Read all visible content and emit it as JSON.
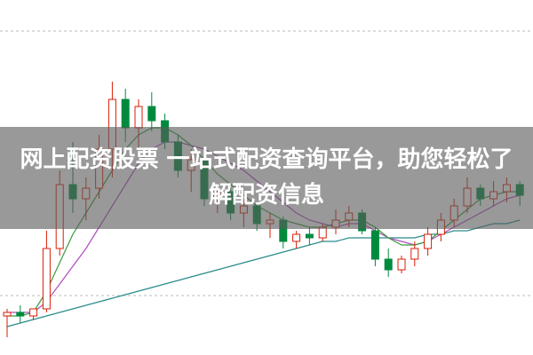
{
  "chart_data": {
    "type": "candlestick",
    "title": "网上配资股票 一站式配资查询平台，助您轻松了解配资信息",
    "ylim": [
      0,
      100
    ],
    "up_color": "#d81e06",
    "down_color": "#008a3e",
    "open": [
      11,
      12,
      11,
      13,
      30,
      48,
      44,
      47,
      58,
      72,
      64,
      70,
      66,
      60,
      52,
      55,
      44,
      46,
      40,
      42,
      37,
      38,
      32,
      34,
      33,
      36,
      38,
      40,
      35,
      27,
      24,
      27,
      30,
      34,
      38,
      42,
      47,
      44,
      46,
      48
    ],
    "high": [
      13,
      14,
      13,
      35,
      52,
      60,
      50,
      62,
      77,
      75,
      72,
      74,
      68,
      62,
      58,
      56,
      48,
      47,
      44,
      43,
      40,
      39,
      35,
      36,
      37,
      41,
      42,
      41,
      36,
      30,
      28,
      32,
      36,
      40,
      44,
      50,
      48,
      49,
      50,
      49
    ],
    "low": [
      5,
      9,
      10,
      12,
      28,
      40,
      38,
      44,
      50,
      60,
      58,
      63,
      58,
      50,
      46,
      42,
      40,
      38,
      36,
      35,
      33,
      30,
      30,
      31,
      32,
      34,
      36,
      34,
      25,
      22,
      23,
      25,
      28,
      32,
      36,
      40,
      42,
      42,
      43,
      42
    ],
    "close": [
      12,
      11,
      13,
      30,
      48,
      44,
      47,
      58,
      72,
      64,
      70,
      66,
      60,
      52,
      55,
      44,
      46,
      40,
      42,
      37,
      38,
      32,
      34,
      33,
      36,
      38,
      40,
      35,
      27,
      24,
      27,
      30,
      34,
      38,
      42,
      47,
      44,
      46,
      48,
      45
    ],
    "lines": [
      {
        "color": "#2a8a8a",
        "values": [
          8,
          9,
          10,
          11,
          12,
          13,
          14,
          15,
          16,
          17,
          18,
          19,
          20,
          21,
          22,
          23,
          24,
          25,
          26,
          27,
          28,
          29,
          30,
          31,
          32,
          32,
          33,
          33,
          33,
          33,
          33,
          33,
          34,
          34,
          35,
          35,
          36,
          37,
          37,
          38
        ]
      },
      {
        "color": "#b04cc0",
        "values": [
          12,
          12,
          12,
          15,
          20,
          25,
          30,
          36,
          42,
          48,
          54,
          58,
          60,
          60,
          59,
          58,
          56,
          54,
          52,
          49,
          46,
          43,
          40,
          38,
          37,
          36,
          37,
          37,
          35,
          33,
          32,
          31,
          32,
          34,
          36,
          38,
          40,
          42,
          44,
          45
        ]
      },
      {
        "color": "#3a9a3a",
        "values": [
          11,
          11,
          12,
          18,
          26,
          34,
          40,
          46,
          52,
          58,
          62,
          64,
          64,
          62,
          59,
          55,
          51,
          48,
          45,
          42,
          40,
          38,
          37,
          36,
          36,
          37,
          38,
          38,
          36,
          33,
          31,
          31,
          32,
          35,
          38,
          41,
          44,
          45,
          46,
          46
        ]
      }
    ]
  }
}
